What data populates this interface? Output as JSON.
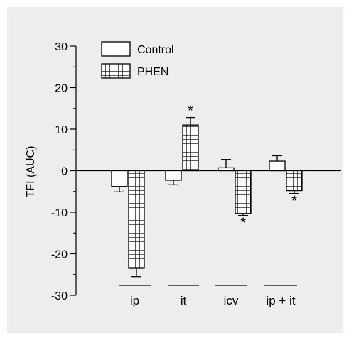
{
  "chart_data": {
    "type": "bar",
    "ylabel": "TFI (AUC)",
    "ylim": [
      -30,
      30
    ],
    "yticks": [
      -30,
      -20,
      -10,
      0,
      10,
      20,
      30
    ],
    "yticks_label": [
      "-30",
      "-20",
      "-10",
      "0",
      "10",
      "20",
      "30"
    ],
    "categories": [
      "ip",
      "it",
      "icv",
      "ip + it"
    ],
    "legend_position": "top-left",
    "grid": false,
    "series": [
      {
        "name": "Control",
        "pattern": "open",
        "color": "#ffffff",
        "values": [
          -3.8,
          -2.3,
          0.7,
          2.3
        ],
        "errors": [
          1.3,
          1.1,
          2.0,
          1.3
        ],
        "significance": [
          "",
          "",
          "",
          ""
        ]
      },
      {
        "name": "PHEN",
        "pattern": "grid",
        "color": "#ffffff",
        "values": [
          -23.5,
          11.0,
          -10.3,
          -4.8
        ],
        "errors": [
          2.0,
          1.8,
          0.5,
          0.7
        ],
        "significance": [
          "",
          "*",
          "*",
          "*"
        ]
      }
    ]
  }
}
